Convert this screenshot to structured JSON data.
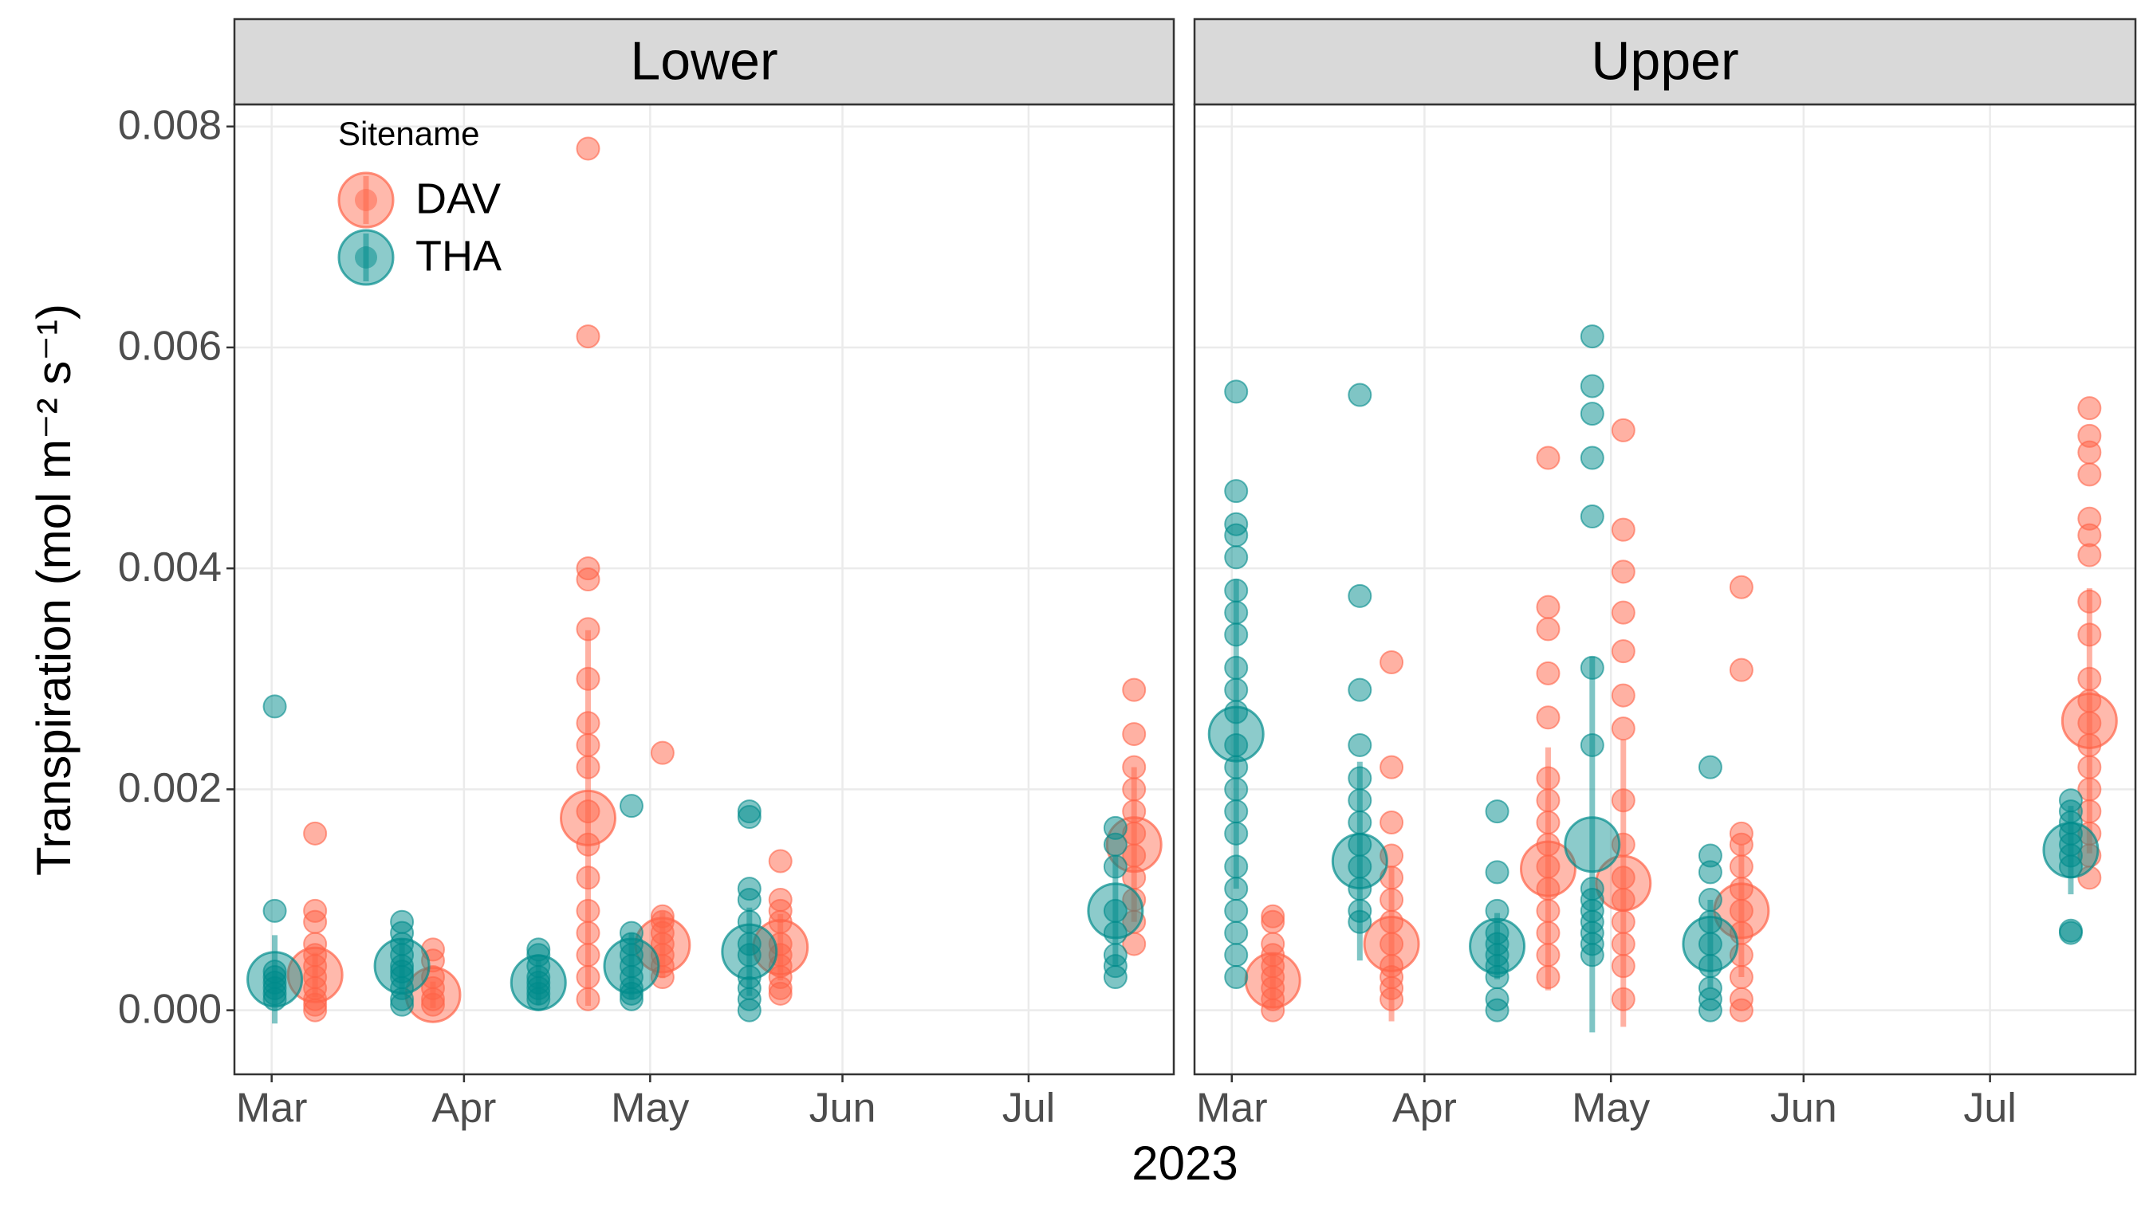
{
  "chart_data": {
    "type": "scatter",
    "y_label": "Transpiration (mol m⁻² s⁻¹)",
    "x_label": "2023",
    "legend_title": "Sitename",
    "legend_position": "top-left",
    "grid": true,
    "xlim": [
      -6,
      145.4
    ],
    "xticks": [
      {
        "value": 0,
        "label": "Mar"
      },
      {
        "value": 31,
        "label": "Apr"
      },
      {
        "value": 61,
        "label": "May"
      },
      {
        "value": 92,
        "label": "Jun"
      },
      {
        "value": 122,
        "label": "Jul"
      }
    ],
    "ylim": [
      -0.00058,
      0.0082
    ],
    "yticks": [
      {
        "value": 0,
        "label": "0.000"
      },
      {
        "value": 0.002,
        "label": "0.002"
      },
      {
        "value": 0.004,
        "label": "0.004"
      },
      {
        "value": 0.006,
        "label": "0.006"
      },
      {
        "value": 0.008,
        "label": "0.008"
      }
    ],
    "facets": [
      {
        "title": "Lower",
        "series": [
          {
            "name": "DAV",
            "color": "#ff6347",
            "groups": [
              {
                "x": 7,
                "mean": 0.00032,
                "sd": 0.0002,
                "values": [
                  0.0016,
                  0.0009,
                  0.0008,
                  0.0006,
                  0.0005,
                  0.0004,
                  0.0003,
                  0.0002,
                  0.0001,
                  5e-05,
                  0.0
                ]
              },
              {
                "x": 26,
                "mean": 0.00014,
                "sd": 0.00012,
                "values": [
                  0.00055,
                  0.00045,
                  0.0003,
                  0.0002,
                  0.0001,
                  5e-05
                ]
              },
              {
                "x": 51,
                "mean": 0.00174,
                "sd": 0.0017,
                "values": [
                  0.0078,
                  0.0061,
                  0.004,
                  0.0039,
                  0.00345,
                  0.003,
                  0.0026,
                  0.0024,
                  0.0022,
                  0.0018,
                  0.0015,
                  0.0012,
                  0.0009,
                  0.0007,
                  0.0005,
                  0.0003,
                  0.0001
                ]
              },
              {
                "x": 63,
                "mean": 0.00059,
                "sd": 0.0003,
                "values": [
                  0.00233,
                  0.00085,
                  0.0008,
                  0.0007,
                  0.0006,
                  0.0005,
                  0.0004,
                  0.0003
                ]
              },
              {
                "x": 82,
                "mean": 0.00057,
                "sd": 0.0003,
                "values": [
                  0.00135,
                  0.001,
                  0.0009,
                  0.0008,
                  0.0006,
                  0.0005,
                  0.0004,
                  0.0003,
                  0.0002,
                  0.00015
                ]
              },
              {
                "x": 139,
                "mean": 0.0015,
                "sd": 0.0007,
                "values": [
                  0.0029,
                  0.0025,
                  0.0022,
                  0.002,
                  0.0018,
                  0.0016,
                  0.0014,
                  0.0012,
                  0.001,
                  0.0008,
                  0.0006
                ]
              }
            ]
          },
          {
            "name": "THA",
            "color": "#008b8b",
            "groups": [
              {
                "x": 0.5,
                "mean": 0.00028,
                "sd": 0.0004,
                "values": [
                  0.00275,
                  0.0009,
                  0.0003,
                  0.00025,
                  0.0002,
                  0.00015,
                  0.0001,
                  0.00035
                ]
              },
              {
                "x": 21,
                "mean": 0.0004,
                "sd": 0.00025,
                "values": [
                  0.0008,
                  0.0007,
                  0.0006,
                  0.0005,
                  0.0004,
                  0.0003,
                  0.0002,
                  0.0001,
                  5e-05,
                  0.00035
                ]
              },
              {
                "x": 43,
                "mean": 0.00025,
                "sd": 0.0002,
                "values": [
                  0.00055,
                  0.0005,
                  0.0004,
                  0.0003,
                  0.0002,
                  0.0001,
                  0.00015,
                  0.00025
                ]
              },
              {
                "x": 58,
                "mean": 0.0004,
                "sd": 0.0003,
                "values": [
                  0.00185,
                  0.0007,
                  0.0006,
                  0.0005,
                  0.0004,
                  0.0003,
                  0.0002,
                  0.0001,
                  0.00015
                ]
              },
              {
                "x": 77,
                "mean": 0.00053,
                "sd": 0.0004,
                "values": [
                  0.0018,
                  0.00175,
                  0.0011,
                  0.001,
                  0.0008,
                  0.0006,
                  0.0005,
                  0.0003,
                  0.0002,
                  0.0001,
                  0.0
                ]
              },
              {
                "x": 136,
                "mean": 0.0009,
                "sd": 0.0005,
                "values": [
                  0.00165,
                  0.0015,
                  0.0013,
                  0.0009,
                  0.0007,
                  0.0005,
                  0.0004,
                  0.0003
                ]
              }
            ]
          }
        ]
      },
      {
        "title": "Upper",
        "series": [
          {
            "name": "DAV",
            "color": "#ff6347",
            "groups": [
              {
                "x": 6.6,
                "mean": 0.00027,
                "sd": 0.00025,
                "values": [
                  0.00085,
                  0.0008,
                  0.0006,
                  0.0005,
                  0.0004,
                  0.0003,
                  0.0002,
                  0.0001,
                  0.0
                ]
              },
              {
                "x": 25.7,
                "mean": 0.0006,
                "sd": 0.0007,
                "values": [
                  0.00315,
                  0.0022,
                  0.0017,
                  0.0014,
                  0.0012,
                  0.001,
                  0.0008,
                  0.0006,
                  0.0004,
                  0.0003,
                  0.0002,
                  0.0001
                ]
              },
              {
                "x": 50.9,
                "mean": 0.00128,
                "sd": 0.0011,
                "values": [
                  0.005,
                  0.00365,
                  0.00345,
                  0.00305,
                  0.00265,
                  0.0021,
                  0.0019,
                  0.0017,
                  0.0015,
                  0.0013,
                  0.0011,
                  0.0009,
                  0.0007,
                  0.0005,
                  0.0003
                ]
              },
              {
                "x": 63,
                "mean": 0.00115,
                "sd": 0.0013,
                "values": [
                  0.00525,
                  0.00435,
                  0.00397,
                  0.0036,
                  0.00325,
                  0.00285,
                  0.00255,
                  0.0019,
                  0.0015,
                  0.0012,
                  0.001,
                  0.0008,
                  0.0006,
                  0.0004,
                  0.0001
                ]
              },
              {
                "x": 82,
                "mean": 0.0009,
                "sd": 0.0006,
                "values": [
                  0.00383,
                  0.00308,
                  0.0016,
                  0.0015,
                  0.0013,
                  0.0011,
                  0.0009,
                  0.0007,
                  0.0005,
                  0.0003,
                  0.0001,
                  0.0
                ]
              },
              {
                "x": 138,
                "mean": 0.00262,
                "sd": 0.0012,
                "values": [
                  0.00545,
                  0.0052,
                  0.00505,
                  0.00485,
                  0.00445,
                  0.0043,
                  0.00412,
                  0.0037,
                  0.0034,
                  0.003,
                  0.0028,
                  0.0026,
                  0.0024,
                  0.0022,
                  0.002,
                  0.0018,
                  0.0016,
                  0.0014,
                  0.0012
                ]
              }
            ]
          },
          {
            "name": "THA",
            "color": "#008b8b",
            "groups": [
              {
                "x": 0.7,
                "mean": 0.0025,
                "sd": 0.0014,
                "values": [
                  0.0056,
                  0.0047,
                  0.0044,
                  0.0043,
                  0.0041,
                  0.0038,
                  0.0036,
                  0.0034,
                  0.0031,
                  0.0029,
                  0.0027,
                  0.0024,
                  0.0022,
                  0.002,
                  0.0018,
                  0.0016,
                  0.0013,
                  0.0011,
                  0.0009,
                  0.0007,
                  0.0005,
                  0.0003
                ]
              },
              {
                "x": 20.6,
                "mean": 0.00135,
                "sd": 0.0009,
                "values": [
                  0.00557,
                  0.00375,
                  0.0029,
                  0.0024,
                  0.0021,
                  0.0019,
                  0.0017,
                  0.0015,
                  0.0013,
                  0.0011,
                  0.0009,
                  0.0008
                ]
              },
              {
                "x": 42.7,
                "mean": 0.00058,
                "sd": 0.0003,
                "values": [
                  0.0018,
                  0.00125,
                  0.0009,
                  0.0007,
                  0.0006,
                  0.0005,
                  0.0004,
                  0.0003,
                  0.0001,
                  0.0
                ]
              },
              {
                "x": 58,
                "mean": 0.0015,
                "sd": 0.0017,
                "values": [
                  0.0061,
                  0.00565,
                  0.0054,
                  0.005,
                  0.00447,
                  0.0031,
                  0.0024,
                  0.0011,
                  0.001,
                  0.0009,
                  0.0008,
                  0.0007,
                  0.0006,
                  0.0005
                ]
              },
              {
                "x": 77,
                "mean": 0.0006,
                "sd": 0.0004,
                "values": [
                  0.0022,
                  0.0014,
                  0.00125,
                  0.001,
                  0.0008,
                  0.0006,
                  0.0004,
                  0.0002,
                  0.0001,
                  0.0
                ]
              },
              {
                "x": 135,
                "mean": 0.00145,
                "sd": 0.0004,
                "values": [
                  0.0019,
                  0.0018,
                  0.0017,
                  0.0016,
                  0.0015,
                  0.0014,
                  0.0013,
                  0.0007,
                  0.00072
                ]
              }
            ]
          }
        ]
      }
    ]
  }
}
